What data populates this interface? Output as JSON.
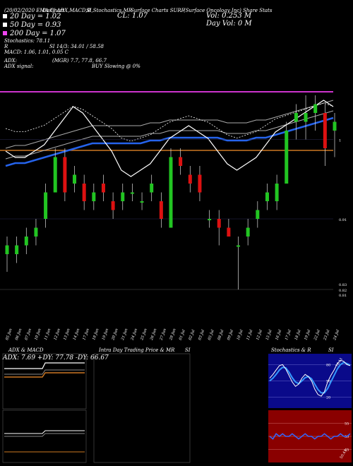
{
  "header": {
    "line1_left": "(20/02/2020 EMA Chart",
    "line1_mid": "Daily ADX,MACD,B",
    "line1_stoch": "SI,Stochastics,MR",
    "line1_ticker": "Surface Charts SURF",
    "line1_right": "(Surface Oncology Inc) Share Stats",
    "cl": "CL: 1.07",
    "vol": "Vol: 0.253 M",
    "dayvol": "Day Vol: 0   M",
    "legend_20": "20 Day = 1.02",
    "legend_50": "50 Day = 0.93",
    "legend_200": "200 Day = 1.07",
    "stoch": "Stochastics: 78.11",
    "si": "SI 14/3: 34.01 / 58.58",
    "r_label": "R",
    "macd": "MACD: 1.06,  1.01,  0.05 C",
    "adx": "ADX:",
    "mgr": "(MGR) 7.7,  77.8,  66.7",
    "adx_signal": "ADX  signal:",
    "buy": "BUY Slowing @ 0%"
  },
  "colors": {
    "ema20": "#ffffff",
    "ema50": "#2563eb",
    "ema200": "#cc33cc",
    "candle_up": "#22c522",
    "candle_down": "#dd1111",
    "orange": "#cc7722"
  },
  "chart_data": [
    {
      "type": "line",
      "panel": "moving averages",
      "series": [
        {
          "name": "20 Day",
          "values": [
            1.0,
            0.99,
            0.99,
            1.0,
            1.01,
            1.03,
            1.05,
            1.07,
            1.06,
            1.04,
            1.02,
            1.0,
            0.97,
            0.96,
            0.97,
            0.98,
            1.0,
            1.02,
            1.03,
            1.04,
            1.03,
            1.02,
            1.0,
            0.98,
            0.97,
            0.98,
            0.99,
            1.01,
            1.03,
            1.04,
            1.05,
            1.06,
            1.07,
            1.08,
            1.07
          ]
        },
        {
          "name": "50 Day",
          "values": [
            0.88,
            0.89,
            0.89,
            0.9,
            0.91,
            0.92,
            0.93,
            0.94,
            0.95,
            0.96,
            0.96,
            0.96,
            0.96,
            0.96,
            0.96,
            0.97,
            0.97,
            0.98,
            0.98,
            0.98,
            0.98,
            0.98,
            0.98,
            0.97,
            0.97,
            0.97,
            0.98,
            0.98,
            0.99,
            1.0,
            1.01,
            1.02,
            1.03,
            1.04,
            1.05
          ]
        },
        {
          "name": "200 Day",
          "values": [
            1.07,
            1.07,
            1.07,
            1.07,
            1.07,
            1.07,
            1.07,
            1.07,
            1.07,
            1.07,
            1.07,
            1.07,
            1.07,
            1.07,
            1.07,
            1.07,
            1.07,
            1.07,
            1.07,
            1.07,
            1.07,
            1.07,
            1.07,
            1.07,
            1.07,
            1.07,
            1.07,
            1.07,
            1.07,
            1.07,
            1.07,
            1.07,
            1.07,
            1.07,
            1.07
          ]
        }
      ]
    },
    {
      "type": "candlestick",
      "panel": "price",
      "right_tick_labels": [
        "1",
        "0.91",
        "0.83",
        "0.82",
        "0.81"
      ],
      "x_labels": [
        "05 Jun",
        "06 Jun",
        "07 Jun",
        "10 Jun",
        "11 Jun",
        "12 Jun",
        "13 Jun",
        "14 Jun",
        "17 Jun",
        "18 Jun",
        "19 Jun",
        "20 Jun",
        "21 Jun",
        "24 Jun",
        "25 Jun",
        "26 Jun",
        "27 Jun",
        "28 Jun",
        "01 Jul",
        "02 Jul",
        "03 Jul",
        "05 Jul",
        "08 Jul",
        "09 Jul",
        "10 Jul",
        "11 Jul",
        "12 Jul",
        "15 Jul",
        "16 Jul",
        "17 Jul",
        "18 Jul",
        "19 Jul",
        "22 Jul",
        "23 Jul",
        "24 Jul"
      ],
      "candles": [
        {
          "o": 0.87,
          "h": 0.89,
          "l": 0.85,
          "c": 0.88
        },
        {
          "o": 0.87,
          "h": 0.89,
          "l": 0.86,
          "c": 0.88
        },
        {
          "o": 0.88,
          "h": 0.9,
          "l": 0.87,
          "c": 0.89
        },
        {
          "o": 0.89,
          "h": 0.91,
          "l": 0.88,
          "c": 0.9
        },
        {
          "o": 0.91,
          "h": 0.95,
          "l": 0.9,
          "c": 0.94
        },
        {
          "o": 0.94,
          "h": 0.99,
          "l": 0.94,
          "c": 0.98
        },
        {
          "o": 0.98,
          "h": 0.99,
          "l": 0.93,
          "c": 0.94
        },
        {
          "o": 0.95,
          "h": 0.97,
          "l": 0.94,
          "c": 0.96
        },
        {
          "o": 0.95,
          "h": 0.96,
          "l": 0.92,
          "c": 0.93
        },
        {
          "o": 0.93,
          "h": 0.95,
          "l": 0.92,
          "c": 0.94
        },
        {
          "o": 0.95,
          "h": 0.96,
          "l": 0.93,
          "c": 0.94
        },
        {
          "o": 0.93,
          "h": 0.94,
          "l": 0.91,
          "c": 0.92
        },
        {
          "o": 0.93,
          "h": 0.95,
          "l": 0.92,
          "c": 0.94
        },
        {
          "o": 0.94,
          "h": 0.95,
          "l": 0.93,
          "c": 0.94
        },
        {
          "o": 0.93,
          "h": 0.94,
          "l": 0.92,
          "c": 0.93
        },
        {
          "o": 0.94,
          "h": 0.96,
          "l": 0.93,
          "c": 0.95
        },
        {
          "o": 0.93,
          "h": 0.94,
          "l": 0.9,
          "c": 0.91
        },
        {
          "o": 0.9,
          "h": 0.99,
          "l": 0.9,
          "c": 0.98
        },
        {
          "o": 0.98,
          "h": 0.99,
          "l": 0.96,
          "c": 0.97
        },
        {
          "o": 0.96,
          "h": 0.97,
          "l": 0.94,
          "c": 0.95
        },
        {
          "o": 0.96,
          "h": 0.97,
          "l": 0.93,
          "c": 0.94
        },
        {
          "o": 0.91,
          "h": 0.92,
          "l": 0.9,
          "c": 0.91
        },
        {
          "o": 0.91,
          "h": 0.92,
          "l": 0.88,
          "c": 0.9
        },
        {
          "o": 0.9,
          "h": 0.91,
          "l": 0.89,
          "c": 0.89
        },
        {
          "o": 0.88,
          "h": 0.89,
          "l": 0.83,
          "c": 0.88
        },
        {
          "o": 0.89,
          "h": 0.91,
          "l": 0.88,
          "c": 0.9
        },
        {
          "o": 0.91,
          "h": 0.93,
          "l": 0.9,
          "c": 0.92
        },
        {
          "o": 0.93,
          "h": 0.95,
          "l": 0.92,
          "c": 0.94
        },
        {
          "o": 0.93,
          "h": 0.96,
          "l": 0.92,
          "c": 0.95
        },
        {
          "o": 0.95,
          "h": 1.02,
          "l": 0.95,
          "c": 1.01
        },
        {
          "o": 1.02,
          "h": 1.04,
          "l": 1.0,
          "c": 1.03
        },
        {
          "o": 1.02,
          "h": 1.05,
          "l": 1.0,
          "c": 1.03
        },
        {
          "o": 1.03,
          "h": 1.05,
          "l": 1.01,
          "c": 1.04
        },
        {
          "o": 1.03,
          "h": 1.04,
          "l": 0.97,
          "c": 0.99
        },
        {
          "o": 1.01,
          "h": 1.03,
          "l": 0.98,
          "c": 1.02
        }
      ]
    },
    {
      "type": "line",
      "panel": "ADX & MACD",
      "title": "ADX  & MACD",
      "readout": "ADX: 7.69  +DY: 77.78  -DY: 66.67"
    },
    {
      "type": "candlestick",
      "panel": "Intra Day",
      "title": "Intra  Day Trading Price  & MR",
      "title_right": "SI"
    },
    {
      "type": "line",
      "panel": "Stochastics & R",
      "title": "Stochastics & R",
      "title_right": "SI",
      "levels": [
        "80",
        "50",
        "20"
      ],
      "stoch_k": [
        55,
        62,
        70,
        78,
        80,
        72,
        60,
        48,
        40,
        44,
        55,
        62,
        58,
        50,
        35,
        25,
        22,
        30,
        48,
        60,
        70,
        82,
        88,
        86,
        80,
        78
      ],
      "stoch_d": [
        50,
        55,
        62,
        70,
        75,
        74,
        66,
        56,
        48,
        45,
        50,
        56,
        58,
        54,
        44,
        34,
        28,
        28,
        36,
        48,
        60,
        72,
        80,
        84,
        82,
        79
      ],
      "value_label": "78.11",
      "rsi_levels": [
        "55",
        "50",
        "45"
      ],
      "rsi": [
        50,
        49,
        51,
        50,
        51,
        50,
        50,
        51,
        50,
        49,
        50,
        51,
        50,
        50,
        49,
        50,
        50,
        51,
        50,
        49,
        50,
        50,
        51,
        50,
        50,
        51
      ],
      "rsi_value_label": "50.41"
    }
  ]
}
